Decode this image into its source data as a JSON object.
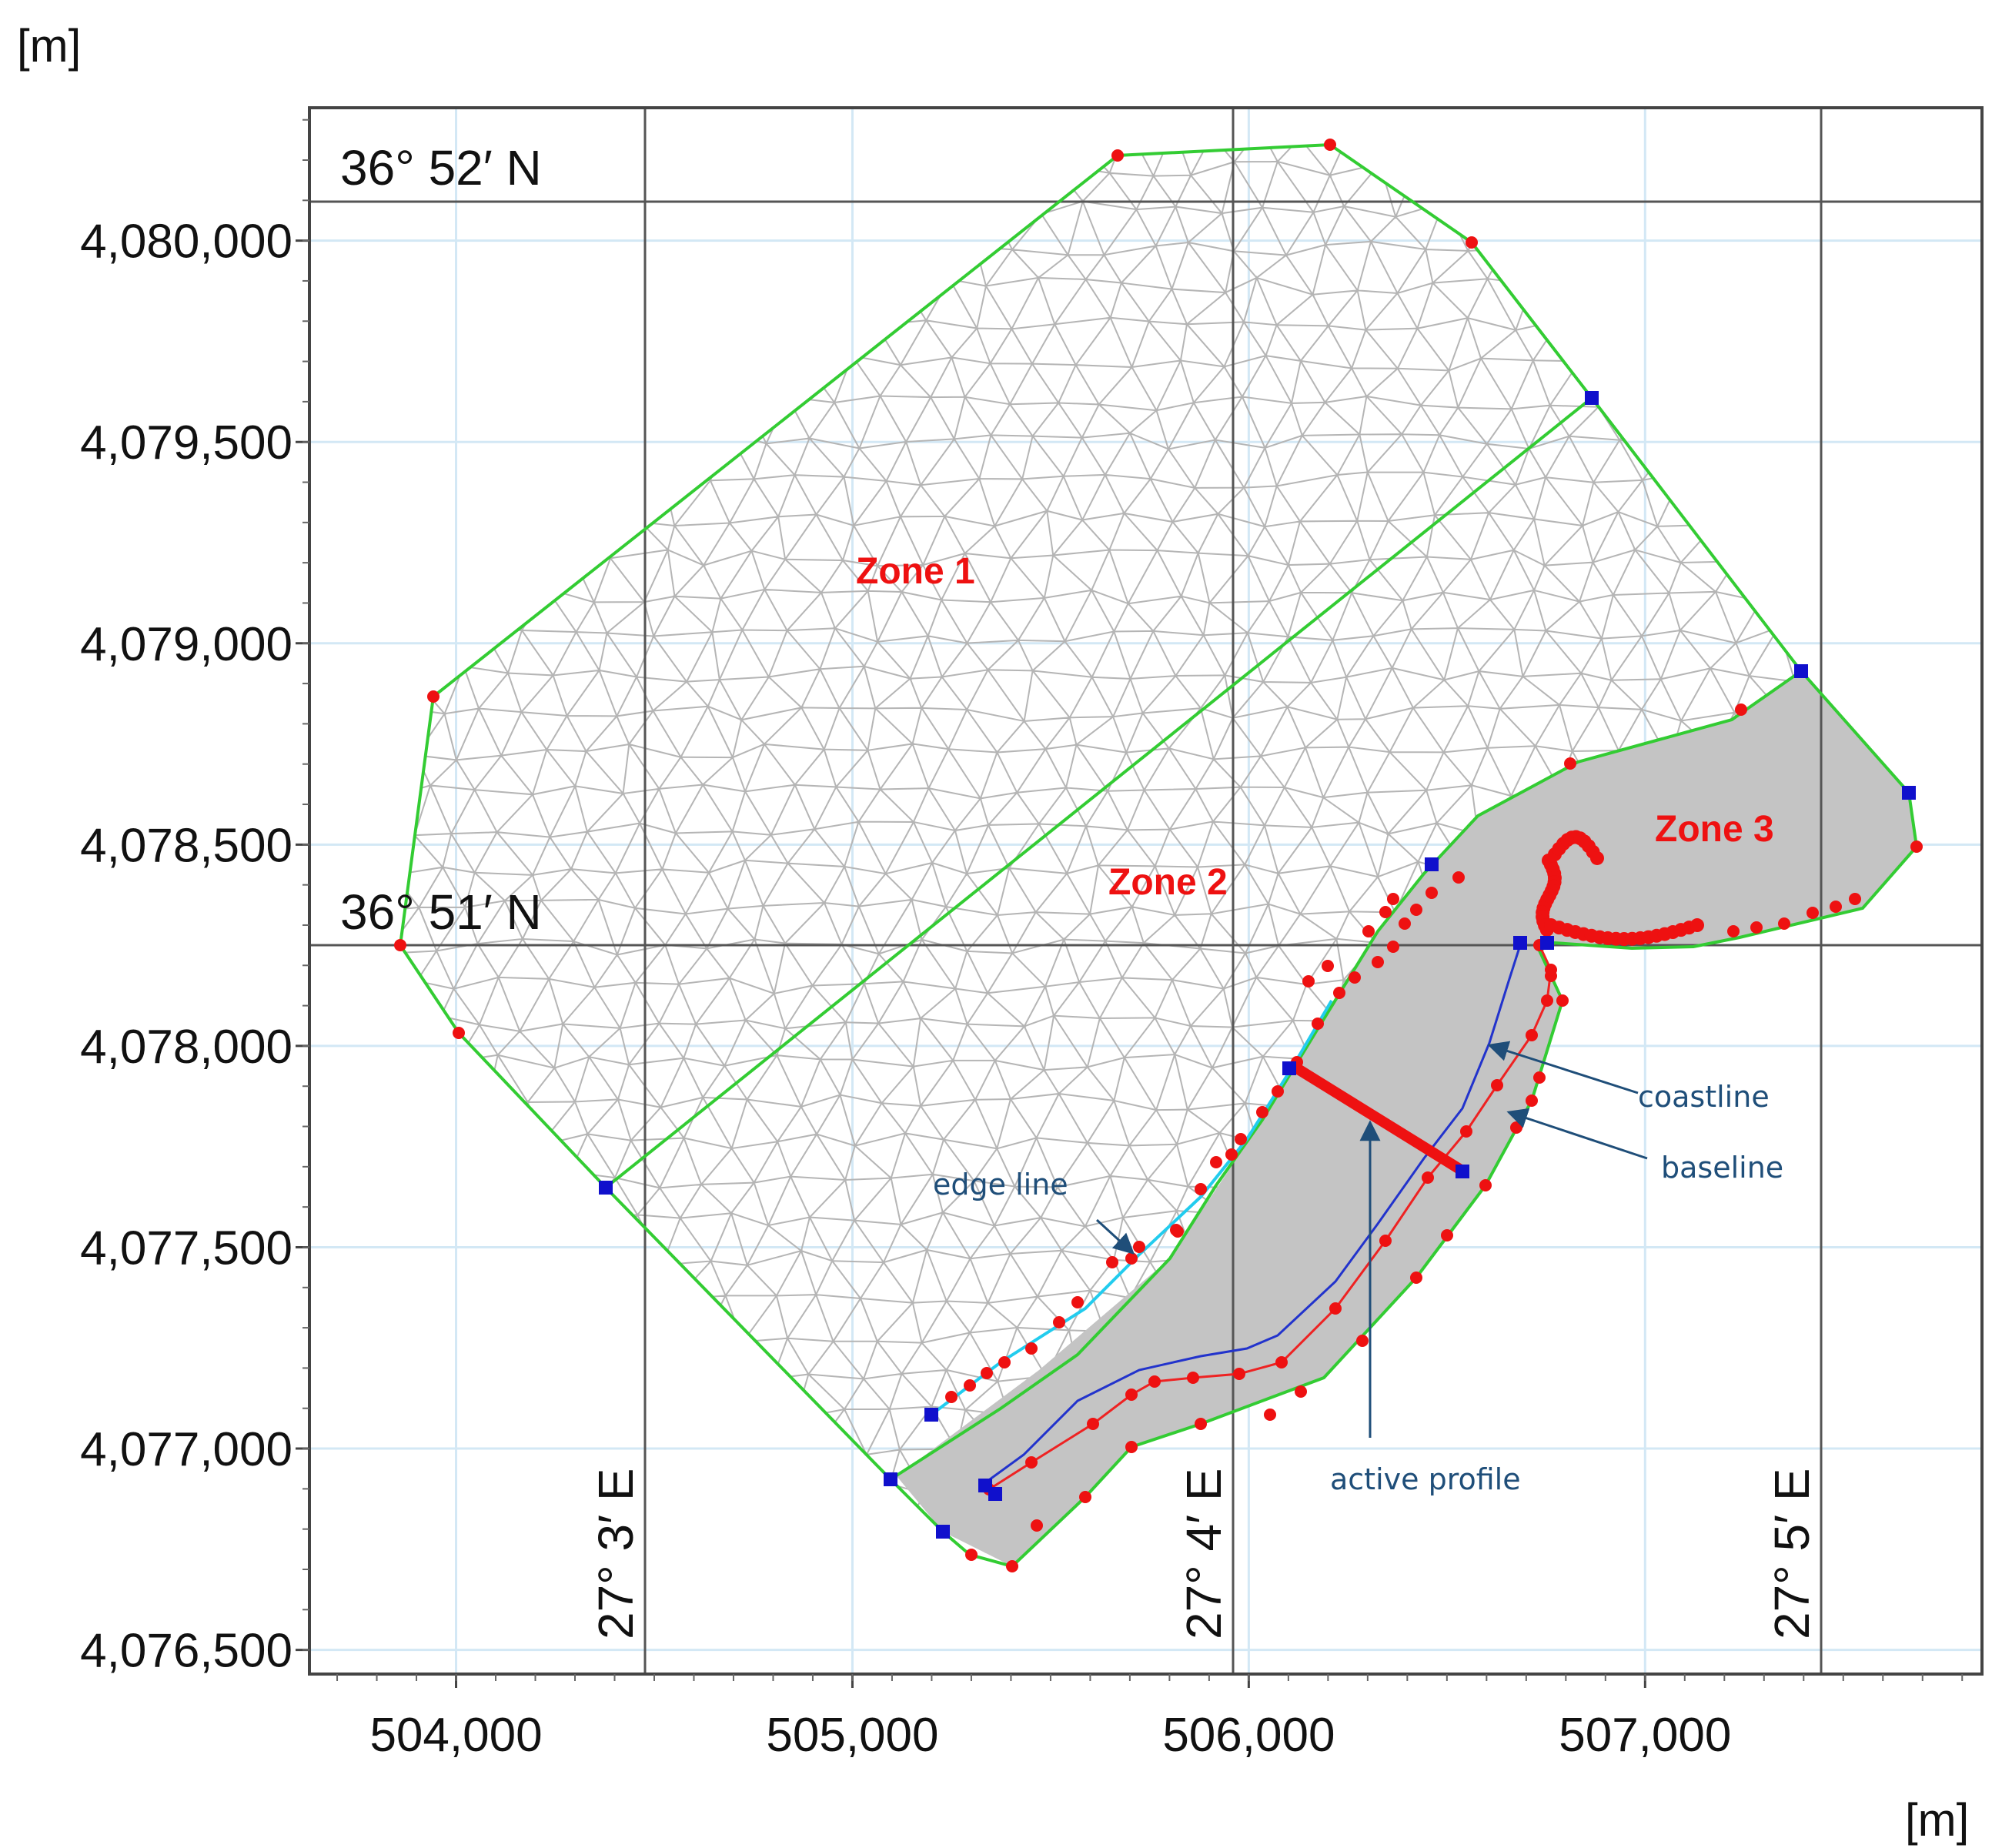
{
  "figure": {
    "x_unit": "[m]",
    "y_unit": "[m]"
  },
  "axes": {
    "x_ticks": [
      "504,000",
      "505,000",
      "506,000",
      "507,000"
    ],
    "y_ticks": [
      "4,080,000",
      "4,079,500",
      "4,079,000",
      "4,078,500",
      "4,078,000",
      "4,077,500",
      "4,077,000",
      "4,076,500"
    ],
    "xlim": [
      503630,
      507850
    ],
    "ylim": [
      4076440,
      4080330
    ]
  },
  "graticule": {
    "parallels": [
      "36° 52′ N",
      "36° 51′ N"
    ],
    "meridians": [
      "27° 3′ E",
      "27° 4′ E",
      "27° 5′ E"
    ]
  },
  "zones": [
    "Zone 1",
    "Zone 2",
    "Zone 3"
  ],
  "annotations": {
    "edge_line": "edge line",
    "coastline": "coastline",
    "baseline": "baseline",
    "active_profile": "active profile"
  },
  "colors": {
    "boundary": "#33cc33",
    "mesh": "#b5b5b5",
    "land": "#c4c4c4",
    "red_points": "#ee1111",
    "blue_nodes": "#1010cc",
    "edge_line": "#22ccee",
    "coastline": "#2233cc",
    "baseline": "#ee2222",
    "zone_label": "#ee1111",
    "annotation": "#1f4e79"
  }
}
